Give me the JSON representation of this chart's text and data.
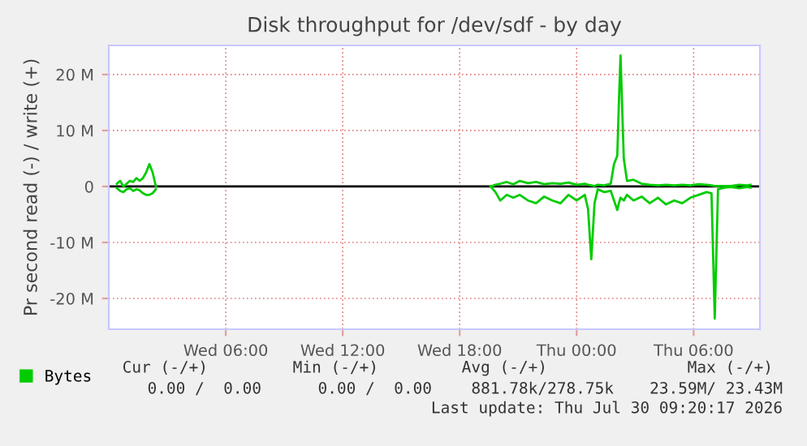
{
  "chart_data": {
    "type": "line",
    "title": "Disk throughput for /dev/sdf - by day",
    "ylabel": "Pr second read (-) / write (+)",
    "xlim": [
      "2026-07-29T00:00",
      "2026-07-30T09:24"
    ],
    "xticks": [
      {
        "value": "2026-07-29T06:00",
        "label": "Wed 06:00"
      },
      {
        "value": "2026-07-29T12:00",
        "label": "Wed 12:00"
      },
      {
        "value": "2026-07-29T18:00",
        "label": "Wed 18:00"
      },
      {
        "value": "2026-07-30T00:00",
        "label": "Thu 00:00"
      },
      {
        "value": "2026-07-30T06:00",
        "label": "Thu 06:00"
      }
    ],
    "ylim": [
      -25.5,
      25.2
    ],
    "yticks": [
      {
        "value": -20,
        "label": "-20 M"
      },
      {
        "value": -10,
        "label": "-10 M"
      },
      0,
      {
        "value": 10,
        "label": "10 M"
      },
      {
        "value": 20,
        "label": "20 M"
      }
    ],
    "grid": true,
    "legend": "bottom left",
    "ref_lines": [
      {
        "axis": "y",
        "value": 0,
        "color": "#000000"
      }
    ],
    "x": [
      "2026-07-29T00:25",
      "2026-07-29T00:35",
      "2026-07-29T00:45",
      "2026-07-29T00:55",
      "2026-07-29T01:05",
      "2026-07-29T01:15",
      "2026-07-29T01:25",
      "2026-07-29T01:35",
      "2026-07-29T01:45",
      "2026-07-29T01:55",
      "2026-07-29T02:05",
      "2026-07-29T02:15",
      "2026-07-29T02:25",
      "2026-07-29T02:35",
      "2026-07-29T19:35",
      "2026-07-29T19:50",
      "2026-07-29T20:05",
      "2026-07-29T20:25",
      "2026-07-29T20:45",
      "2026-07-29T21:05",
      "2026-07-29T21:30",
      "2026-07-29T21:55",
      "2026-07-29T22:20",
      "2026-07-29T22:45",
      "2026-07-29T23:10",
      "2026-07-29T23:35",
      "2026-07-30T00:00",
      "2026-07-30T00:25",
      "2026-07-30T00:35",
      "2026-07-30T00:45",
      "2026-07-30T00:55",
      "2026-07-30T01:05",
      "2026-07-30T01:25",
      "2026-07-30T01:45",
      "2026-07-30T01:55",
      "2026-07-30T02:05",
      "2026-07-30T02:10",
      "2026-07-30T02:15",
      "2026-07-30T02:25",
      "2026-07-30T02:35",
      "2026-07-30T02:55",
      "2026-07-30T03:20",
      "2026-07-30T03:45",
      "2026-07-30T04:10",
      "2026-07-30T04:35",
      "2026-07-30T05:00",
      "2026-07-30T05:25",
      "2026-07-30T05:50",
      "2026-07-30T06:15",
      "2026-07-30T06:40",
      "2026-07-30T06:55",
      "2026-07-30T07:05",
      "2026-07-30T07:15",
      "2026-07-30T07:35",
      "2026-07-30T07:55",
      "2026-07-30T08:20",
      "2026-07-30T08:45",
      "2026-07-30T08:55"
    ],
    "series": [
      {
        "name": "Bytes",
        "color": "#00cc00",
        "values": [
          0.5,
          1.0,
          0,
          0.5,
          1,
          0.8,
          1.5,
          1.0,
          1.5,
          2.5,
          4.0,
          2.5,
          0,
          null,
          0,
          0.3,
          0.5,
          0.8,
          0.4,
          1.0,
          0.6,
          0.8,
          0.4,
          0.6,
          0.5,
          0.7,
          0.3,
          0.5,
          0.3,
          0.2,
          0.1,
          0.3,
          0.2,
          0.5,
          4,
          5.5,
          15,
          23.4,
          5,
          1.0,
          1.2,
          0.5,
          0.3,
          0.2,
          0.3,
          0.2,
          0.3,
          0.2,
          0.4,
          0.3,
          0.2,
          0.1,
          0.1,
          0.1,
          0.1,
          0.3,
          0.2,
          0.3
        ]
      },
      {
        "color": "#00cc00",
        "values": [
          -0.3,
          -0.8,
          -1,
          -0.5,
          -0.3,
          -0.8,
          -0.5,
          -0.7,
          -1.2,
          -1.5,
          -1.5,
          -1.2,
          -0.5,
          null,
          0,
          -1.0,
          -2.5,
          -1.5,
          -2.0,
          -1.5,
          -2.5,
          -3.0,
          -1.8,
          -2.5,
          -3.0,
          -1.5,
          -2.5,
          -1.5,
          -4,
          -13,
          -3,
          -0.5,
          -1,
          -0.8,
          -2.5,
          -4.2,
          -3,
          -2,
          -2.5,
          -1.5,
          -2.5,
          -1.8,
          -3.0,
          -2.0,
          -3.2,
          -2.5,
          -3.0,
          -2.0,
          -1.5,
          -1.0,
          -1.2,
          -23.6,
          -0.5,
          -0.2,
          -0.1,
          -0.3,
          -0.1,
          -0.2
        ]
      }
    ],
    "annotations": [
      "Cur (-/+)",
      "Min (-/+)",
      "Avg (-/+)",
      "Max (-/+)",
      "0.00 /  0.00",
      "0.00 /  0.00",
      "881.78k/278.75k",
      "23.59M/ 23.43M",
      "Last update: Thu Jul 30 09:20:17 2026"
    ]
  }
}
